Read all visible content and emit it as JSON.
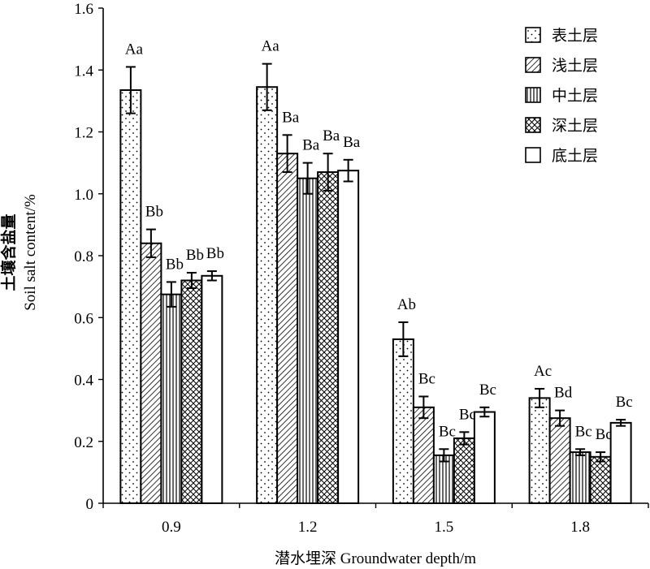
{
  "chart_data": {
    "type": "bar",
    "xlabel": "潜水埋深 Groundwater depth/m",
    "ylabel_cn": "土壤含盐量",
    "ylabel_en": "Soil salt content/%",
    "ylim": [
      0,
      1.6
    ],
    "yticks": [
      "0",
      "0.2",
      "0.4",
      "0.6",
      "0.8",
      "1.0",
      "1.2",
      "1.4",
      "1.6"
    ],
    "categories": [
      "0.9",
      "1.2",
      "1.5",
      "1.8"
    ],
    "legend_position": "top-right",
    "grid": false,
    "series": [
      {
        "name": "表土层",
        "pattern": "dots",
        "values": [
          1.335,
          1.345,
          0.53,
          0.34
        ],
        "errors": [
          0.075,
          0.075,
          0.055,
          0.03
        ],
        "labels": [
          "Aa",
          "Aa",
          "Ab",
          "Ac"
        ]
      },
      {
        "name": "浅土层",
        "pattern": "diagonal",
        "values": [
          0.84,
          1.13,
          0.31,
          0.275
        ],
        "errors": [
          0.045,
          0.06,
          0.035,
          0.025
        ],
        "labels": [
          "Bb",
          "Ba",
          "Bc",
          "Bd"
        ]
      },
      {
        "name": "中土层",
        "pattern": "vertical",
        "values": [
          0.675,
          1.05,
          0.155,
          0.165
        ],
        "errors": [
          0.04,
          0.05,
          0.02,
          0.01
        ],
        "labels": [
          "Bb",
          "Ba",
          "Bc",
          "Bc"
        ]
      },
      {
        "name": "深土层",
        "pattern": "crosshatch",
        "values": [
          0.72,
          1.07,
          0.21,
          0.15
        ],
        "errors": [
          0.025,
          0.06,
          0.02,
          0.015
        ],
        "labels": [
          "Bb",
          "Ba",
          "Bc",
          "Bc"
        ]
      },
      {
        "name": "底土层",
        "pattern": "blank",
        "values": [
          0.735,
          1.075,
          0.295,
          0.26
        ],
        "errors": [
          0.015,
          0.035,
          0.015,
          0.01
        ],
        "labels": [
          "Bb",
          "Ba",
          "Bc",
          "Bc"
        ]
      }
    ]
  }
}
